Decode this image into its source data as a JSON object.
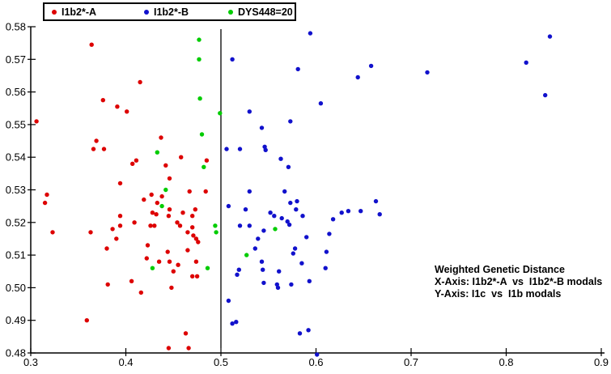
{
  "legend": {
    "items": [
      {
        "label": "I1b2*-A"
      },
      {
        "label": "I1b2*-B"
      },
      {
        "label": "DYS448=20"
      }
    ]
  },
  "annotation": {
    "line1": "Weighted Genetic Distance",
    "line2": "X-Axis: I1b2*-A  vs  I1b2*-B modals",
    "line3": "Y-Axis: I1c  vs  I1b modals"
  },
  "chart_data": {
    "type": "scatter",
    "title": "",
    "xlabel": "",
    "ylabel": "",
    "xlim": [
      0.3,
      0.9
    ],
    "ylim": [
      0.48,
      0.58
    ],
    "x_tick_labels": [
      "0.3",
      "0.4",
      "0.5",
      "0.6",
      "0.7",
      "0.8",
      "0.9"
    ],
    "y_tick_labels": [
      "0.58",
      "0.57",
      "0.56",
      "0.55",
      "0.54",
      "0.53",
      "0.52",
      "0.51",
      "0.50",
      "0.49",
      "0.48"
    ],
    "x_ticks": [
      0.3,
      0.4,
      0.5,
      0.6,
      0.7,
      0.8,
      0.9
    ],
    "y_ticks": [
      0.58,
      0.57,
      0.56,
      0.55,
      0.54,
      0.53,
      0.52,
      0.51,
      0.5,
      0.49,
      0.48
    ],
    "grid": false,
    "legend_position": "top-left",
    "divider_x": 0.5,
    "axis_color": "#000000",
    "series": [
      {
        "name": "I1b2*-A",
        "color": "#dd0000",
        "points": [
          [
            0.364,
            0.5745
          ],
          [
            0.415,
            0.563
          ],
          [
            0.376,
            0.5575
          ],
          [
            0.391,
            0.5555
          ],
          [
            0.401,
            0.554
          ],
          [
            0.306,
            0.551
          ],
          [
            0.437,
            0.546
          ],
          [
            0.369,
            0.545
          ],
          [
            0.366,
            0.5425
          ],
          [
            0.377,
            0.5425
          ],
          [
            0.458,
            0.54
          ],
          [
            0.411,
            0.539
          ],
          [
            0.407,
            0.538
          ],
          [
            0.442,
            0.5375
          ],
          [
            0.485,
            0.539
          ],
          [
            0.446,
            0.5335
          ],
          [
            0.394,
            0.532
          ],
          [
            0.467,
            0.5295
          ],
          [
            0.317,
            0.5285
          ],
          [
            0.427,
            0.5285
          ],
          [
            0.438,
            0.528
          ],
          [
            0.484,
            0.5295
          ],
          [
            0.419,
            0.527
          ],
          [
            0.433,
            0.526
          ],
          [
            0.315,
            0.526
          ],
          [
            0.446,
            0.524
          ],
          [
            0.428,
            0.523
          ],
          [
            0.432,
            0.5225
          ],
          [
            0.445,
            0.522
          ],
          [
            0.473,
            0.524
          ],
          [
            0.46,
            0.523
          ],
          [
            0.394,
            0.522
          ],
          [
            0.47,
            0.522
          ],
          [
            0.454,
            0.52
          ],
          [
            0.394,
            0.519
          ],
          [
            0.409,
            0.52
          ],
          [
            0.426,
            0.519
          ],
          [
            0.43,
            0.519
          ],
          [
            0.457,
            0.519
          ],
          [
            0.47,
            0.5185
          ],
          [
            0.465,
            0.517
          ],
          [
            0.323,
            0.517
          ],
          [
            0.363,
            0.517
          ],
          [
            0.386,
            0.518
          ],
          [
            0.471,
            0.516
          ],
          [
            0.39,
            0.515
          ],
          [
            0.474,
            0.515
          ],
          [
            0.476,
            0.514
          ],
          [
            0.38,
            0.512
          ],
          [
            0.423,
            0.513
          ],
          [
            0.465,
            0.5115
          ],
          [
            0.444,
            0.511
          ],
          [
            0.422,
            0.509
          ],
          [
            0.435,
            0.508
          ],
          [
            0.446,
            0.508
          ],
          [
            0.455,
            0.507
          ],
          [
            0.474,
            0.508
          ],
          [
            0.45,
            0.505
          ],
          [
            0.47,
            0.5035
          ],
          [
            0.475,
            0.5035
          ],
          [
            0.381,
            0.501
          ],
          [
            0.406,
            0.502
          ],
          [
            0.416,
            0.4985
          ],
          [
            0.448,
            0.5
          ],
          [
            0.359,
            0.49
          ],
          [
            0.463,
            0.486
          ],
          [
            0.445,
            0.4815
          ],
          [
            0.466,
            0.4815
          ]
        ]
      },
      {
        "name": "I1b2*-B",
        "color": "#1111cc",
        "points": [
          [
            0.594,
            0.578
          ],
          [
            0.512,
            0.57
          ],
          [
            0.581,
            0.567
          ],
          [
            0.658,
            0.568
          ],
          [
            0.644,
            0.5645
          ],
          [
            0.605,
            0.5565
          ],
          [
            0.53,
            0.554
          ],
          [
            0.573,
            0.551
          ],
          [
            0.543,
            0.549
          ],
          [
            0.846,
            0.577
          ],
          [
            0.821,
            0.569
          ],
          [
            0.717,
            0.566
          ],
          [
            0.841,
            0.559
          ],
          [
            0.506,
            0.5425
          ],
          [
            0.52,
            0.5425
          ],
          [
            0.546,
            0.5432
          ],
          [
            0.547,
            0.5422
          ],
          [
            0.563,
            0.5395
          ],
          [
            0.571,
            0.537
          ],
          [
            0.53,
            0.5295
          ],
          [
            0.567,
            0.5295
          ],
          [
            0.508,
            0.525
          ],
          [
            0.526,
            0.524
          ],
          [
            0.573,
            0.526
          ],
          [
            0.58,
            0.5265
          ],
          [
            0.579,
            0.524
          ],
          [
            0.586,
            0.522
          ],
          [
            0.552,
            0.523
          ],
          [
            0.556,
            0.522
          ],
          [
            0.663,
            0.5265
          ],
          [
            0.618,
            0.521
          ],
          [
            0.627,
            0.523
          ],
          [
            0.634,
            0.5235
          ],
          [
            0.647,
            0.5235
          ],
          [
            0.667,
            0.5225
          ],
          [
            0.564,
            0.5213
          ],
          [
            0.57,
            0.5203
          ],
          [
            0.572,
            0.5193
          ],
          [
            0.52,
            0.519
          ],
          [
            0.53,
            0.519
          ],
          [
            0.545,
            0.5175
          ],
          [
            0.539,
            0.515
          ],
          [
            0.59,
            0.5155
          ],
          [
            0.614,
            0.5165
          ],
          [
            0.536,
            0.512
          ],
          [
            0.578,
            0.512
          ],
          [
            0.576,
            0.5105
          ],
          [
            0.611,
            0.511
          ],
          [
            0.543,
            0.508
          ],
          [
            0.585,
            0.5075
          ],
          [
            0.519,
            0.5055
          ],
          [
            0.517,
            0.504
          ],
          [
            0.544,
            0.5055
          ],
          [
            0.561,
            0.505
          ],
          [
            0.61,
            0.506
          ],
          [
            0.545,
            0.5015
          ],
          [
            0.559,
            0.501
          ],
          [
            0.56,
            0.5
          ],
          [
            0.574,
            0.501
          ],
          [
            0.593,
            0.502
          ],
          [
            0.508,
            0.496
          ],
          [
            0.512,
            0.489
          ],
          [
            0.516,
            0.4895
          ],
          [
            0.583,
            0.486
          ],
          [
            0.592,
            0.487
          ],
          [
            0.601,
            0.4795
          ]
        ]
      },
      {
        "name": "DYS448=20",
        "color": "#00cc00",
        "points": [
          [
            0.477,
            0.576
          ],
          [
            0.477,
            0.57
          ],
          [
            0.478,
            0.558
          ],
          [
            0.499,
            0.5535
          ],
          [
            0.48,
            0.547
          ],
          [
            0.433,
            0.5415
          ],
          [
            0.482,
            0.537
          ],
          [
            0.442,
            0.53
          ],
          [
            0.438,
            0.525
          ],
          [
            0.494,
            0.519
          ],
          [
            0.495,
            0.517
          ],
          [
            0.557,
            0.518
          ],
          [
            0.527,
            0.51
          ],
          [
            0.428,
            0.506
          ],
          [
            0.486,
            0.506
          ]
        ]
      }
    ]
  }
}
